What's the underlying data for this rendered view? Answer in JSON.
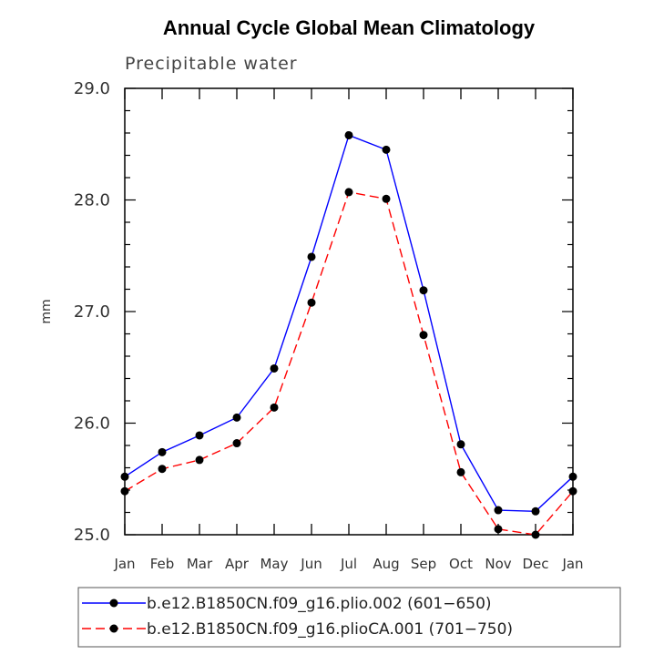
{
  "chart_data": {
    "type": "line",
    "title": "Annual Cycle Global Mean Climatology",
    "subtitle": "Precipitable water",
    "xlabel": "",
    "ylabel": "mm",
    "categories": [
      "Jan",
      "Feb",
      "Mar",
      "Apr",
      "May",
      "Jun",
      "Jul",
      "Aug",
      "Sep",
      "Oct",
      "Nov",
      "Dec",
      "Jan"
    ],
    "ylim": [
      25.0,
      29.0
    ],
    "yticks": [
      25.0,
      26.0,
      27.0,
      28.0,
      29.0
    ],
    "ytick_labels": [
      "25.0",
      "26.0",
      "27.0",
      "28.0",
      "29.0"
    ],
    "grid": false,
    "legend_position": "bottom",
    "series": [
      {
        "name": "b.e12.B1850CN.f09_g16.plio.002 (601−650)",
        "color": "#0000ff",
        "dash": "solid",
        "values": [
          25.52,
          25.74,
          25.89,
          26.05,
          26.49,
          27.49,
          28.58,
          28.45,
          27.19,
          25.81,
          25.22,
          25.21,
          25.52
        ]
      },
      {
        "name": "b.e12.B1850CN.f09_g16.plioCA.001 (701−750)",
        "color": "#ff0000",
        "dash": "dashed",
        "values": [
          25.39,
          25.59,
          25.67,
          25.82,
          26.14,
          27.08,
          28.07,
          28.01,
          26.79,
          25.56,
          25.05,
          25.0,
          25.39
        ]
      }
    ]
  }
}
